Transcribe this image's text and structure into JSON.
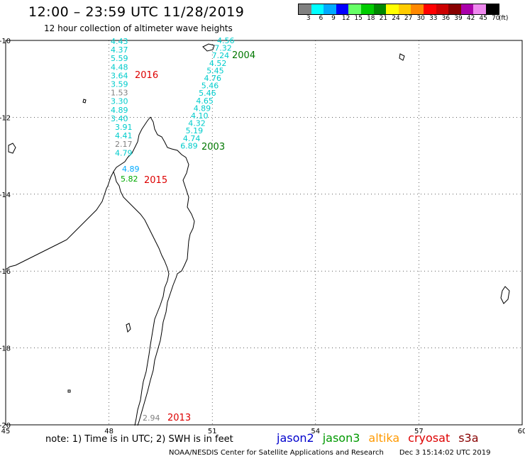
{
  "header": {
    "title": "12:00 – 23:59 UTC 11/28/2019",
    "subtitle": "12 hour collection of altimeter wave heights"
  },
  "colorbar": {
    "unit_label": "(ft)",
    "levels": [
      {
        "label": "3",
        "color": "#808080"
      },
      {
        "label": "6",
        "color": "#00ffff"
      },
      {
        "label": "9",
        "color": "#00aaff"
      },
      {
        "label": "12",
        "color": "#0000ff"
      },
      {
        "label": "15",
        "color": "#66ff66"
      },
      {
        "label": "18",
        "color": "#00cc00"
      },
      {
        "label": "21",
        "color": "#008800"
      },
      {
        "label": "24",
        "color": "#ffff00"
      },
      {
        "label": "27",
        "color": "#ffcc00"
      },
      {
        "label": "30",
        "color": "#ff8800"
      },
      {
        "label": "33",
        "color": "#ff0000"
      },
      {
        "label": "36",
        "color": "#cc0000"
      },
      {
        "label": "39",
        "color": "#880000"
      },
      {
        "label": "42",
        "color": "#aa00aa"
      },
      {
        "label": "45",
        "color": "#ee88ee"
      },
      {
        "label": "70",
        "color": "#000000"
      }
    ]
  },
  "map": {
    "lat_ticks": [
      "-10",
      "-12",
      "-14",
      "-16",
      "-18",
      "-20"
    ],
    "lon_ticks": [
      "45",
      "48",
      "51",
      "54",
      "57",
      "60"
    ],
    "lat_range": [
      -20,
      -10
    ],
    "lon_range": [
      45,
      60
    ],
    "grid": "dotted"
  },
  "tracks": [
    {
      "year_label": "2016",
      "label_color": "#dd0000",
      "values": [
        {
          "text": "4.43",
          "color": "#00cccc"
        },
        {
          "text": "4.37",
          "color": "#00cccc"
        },
        {
          "text": "5.59",
          "color": "#00cccc"
        },
        {
          "text": "4.48",
          "color": "#00cccc"
        },
        {
          "text": "3.64",
          "color": "#00cccc"
        },
        {
          "text": "3.59",
          "color": "#00cccc"
        },
        {
          "text": "1.53",
          "color": "#808080"
        },
        {
          "text": "3.30",
          "color": "#00cccc"
        },
        {
          "text": "4.89",
          "color": "#00cccc"
        },
        {
          "text": "3.40",
          "color": "#00cccc"
        },
        {
          "text": "3.91",
          "color": "#00cccc"
        },
        {
          "text": "4.41",
          "color": "#00cccc"
        },
        {
          "text": "2.17",
          "color": "#808080"
        },
        {
          "text": "4.79",
          "color": "#00cccc"
        }
      ]
    },
    {
      "year_label": "2004",
      "label_color": "#007700",
      "values": [
        {
          "text": "4.56",
          "color": "#00cccc"
        },
        {
          "text": "7.32",
          "color": "#00cccc"
        },
        {
          "text": "7.24",
          "color": "#00cccc"
        },
        {
          "text": "4.52",
          "color": "#00cccc"
        },
        {
          "text": "5.45",
          "color": "#00cccc"
        },
        {
          "text": "4.76",
          "color": "#00cccc"
        },
        {
          "text": "5.46",
          "color": "#00cccc"
        },
        {
          "text": "5.46",
          "color": "#00cccc"
        },
        {
          "text": "4.65",
          "color": "#00cccc"
        },
        {
          "text": "4.89",
          "color": "#00cccc"
        },
        {
          "text": "4.10",
          "color": "#00cccc"
        },
        {
          "text": "4.32",
          "color": "#00cccc"
        },
        {
          "text": "5.19",
          "color": "#00cccc"
        },
        {
          "text": "4.74",
          "color": "#00cccc"
        },
        {
          "text": "6.89",
          "color": "#00cccc"
        }
      ]
    },
    {
      "year_label": "2003",
      "label_color": "#007700",
      "values": []
    },
    {
      "year_label": "2015",
      "label_color": "#dd0000",
      "values": [
        {
          "text": "4.89",
          "color": "#00aaff"
        },
        {
          "text": "5.82",
          "color": "#00aa00"
        }
      ]
    },
    {
      "year_label": "2013",
      "label_color": "#dd0000",
      "values": [
        {
          "text": "2.94",
          "color": "#808080"
        }
      ]
    }
  ],
  "footer": {
    "note": "note:  1) Time is in UTC;  2) SWH is in feet",
    "missions": [
      {
        "name": "jason2",
        "color": "#0000cc"
      },
      {
        "name": "jason3",
        "color": "#009900"
      },
      {
        "name": "altika",
        "color": "#ff9900"
      },
      {
        "name": "cryosat",
        "color": "#dd0000"
      },
      {
        "name": "s3a",
        "color": "#880000"
      }
    ],
    "credit": "NOAA/NESDIS Center for Satellite Applications and Research",
    "timestamp": "Dec  3 15:14:02 UTC 2019"
  }
}
